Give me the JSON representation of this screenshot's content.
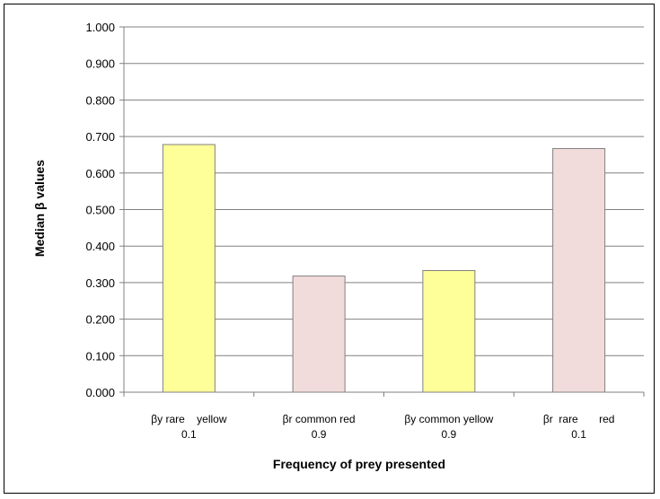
{
  "chart_data": {
    "type": "bar",
    "title": "",
    "xlabel": "Frequency of prey presented",
    "ylabel": "Median β  values",
    "ylim": [
      0,
      1
    ],
    "yticks": [
      "0.000",
      "0.100",
      "0.200",
      "0.300",
      "0.400",
      "0.500",
      "0.600",
      "0.700",
      "0.800",
      "0.900",
      "1.000"
    ],
    "grid": true,
    "legend": "none",
    "categories": [
      {
        "line1": "βy rare    yellow",
        "line2": "0.1"
      },
      {
        "line1": "βr common red",
        "line2": "0.9"
      },
      {
        "line1": "βy common yellow",
        "line2": "0.9"
      },
      {
        "line1": "βr  rare       red",
        "line2": "0.1"
      }
    ],
    "values": [
      0.678,
      0.318,
      0.333,
      0.667
    ],
    "bar_colors": [
      "#ffff99",
      "#f2dcdb",
      "#ffff99",
      "#f2dcdb"
    ],
    "bar_stroke": "#808080",
    "grid_color": "#808080"
  }
}
